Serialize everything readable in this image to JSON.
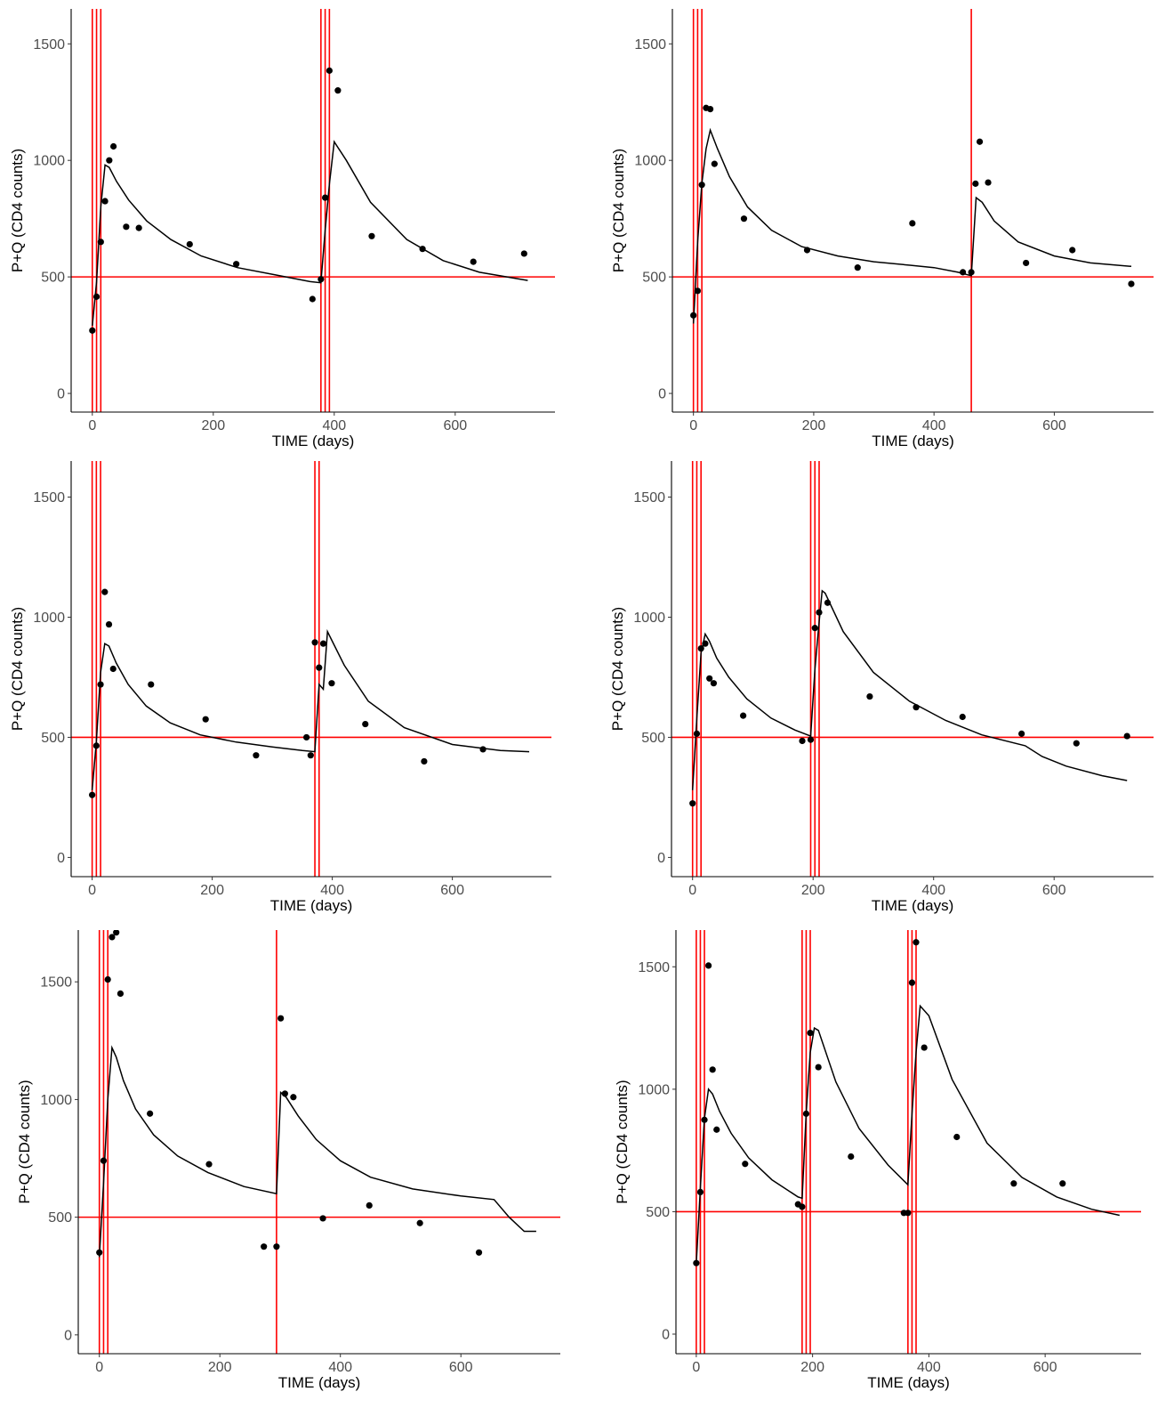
{
  "figure": {
    "colors": {
      "threshold": "#ff0000",
      "dose": "#ff0000",
      "fit": "#000000",
      "observed": "#000000"
    }
  },
  "chart_data": [
    {
      "type": "scatter",
      "panel": "top-left",
      "xlabel": "TIME (days)",
      "ylabel": "P+Q (CD4 counts)",
      "xlim": [
        -35,
        765
      ],
      "ylim": [
        -80,
        1650
      ],
      "xticks": [
        0,
        200,
        400,
        600
      ],
      "yticks": [
        0,
        500,
        1000,
        1500
      ],
      "grid": false,
      "threshold": 500,
      "dose_times": [
        0,
        7,
        14,
        378,
        385,
        392
      ],
      "observed": {
        "x": [
          0,
          7,
          14,
          21,
          28,
          35,
          56,
          77,
          161,
          238,
          364,
          378,
          385,
          392,
          406,
          462,
          546,
          630,
          714
        ],
        "y": [
          270,
          415,
          650,
          825,
          1000,
          1060,
          715,
          710,
          640,
          555,
          405,
          490,
          840,
          1385,
          1300,
          675,
          620,
          565,
          600
        ]
      },
      "fit": {
        "x": [
          0,
          7,
          14,
          21,
          28,
          40,
          60,
          90,
          130,
          180,
          240,
          300,
          360,
          378,
          385,
          392,
          400,
          420,
          460,
          520,
          580,
          640,
          720
        ],
        "y": [
          290,
          480,
          800,
          980,
          970,
          910,
          830,
          740,
          660,
          590,
          540,
          510,
          480,
          475,
          700,
          900,
          1080,
          1000,
          820,
          660,
          570,
          520,
          485
        ]
      }
    },
    {
      "type": "scatter",
      "panel": "top-right",
      "xlabel": "TIME (days)",
      "ylabel": "P+Q (CD4 counts)",
      "xlim": [
        -35,
        765
      ],
      "ylim": [
        -80,
        1650
      ],
      "xticks": [
        0,
        200,
        400,
        600
      ],
      "yticks": [
        0,
        500,
        1000,
        1500
      ],
      "grid": false,
      "threshold": 500,
      "dose_times": [
        0,
        7,
        14,
        462
      ],
      "observed": {
        "x": [
          0,
          7,
          14,
          21,
          28,
          35,
          84,
          189,
          273,
          364,
          448,
          462,
          469,
          476,
          490,
          553,
          630,
          728
        ],
        "y": [
          335,
          440,
          895,
          1225,
          1220,
          985,
          750,
          615,
          540,
          730,
          520,
          520,
          900,
          1080,
          905,
          560,
          615,
          470
        ]
      },
      "fit": {
        "x": [
          0,
          7,
          14,
          21,
          28,
          40,
          60,
          90,
          130,
          180,
          240,
          300,
          360,
          400,
          440,
          462,
          470,
          480,
          500,
          540,
          600,
          660,
          728
        ],
        "y": [
          300,
          650,
          900,
          1050,
          1130,
          1050,
          930,
          800,
          700,
          630,
          590,
          565,
          550,
          540,
          520,
          505,
          840,
          820,
          740,
          650,
          590,
          560,
          545
        ]
      }
    },
    {
      "type": "scatter",
      "panel": "middle-left",
      "xlabel": "TIME (days)",
      "ylabel": "P+Q (CD4 counts)",
      "xlim": [
        -35,
        765
      ],
      "ylim": [
        -80,
        1650
      ],
      "xticks": [
        0,
        200,
        400,
        600
      ],
      "yticks": [
        0,
        500,
        1000,
        1500
      ],
      "grid": false,
      "threshold": 500,
      "dose_times": [
        0,
        7,
        14,
        371,
        378
      ],
      "observed": {
        "x": [
          0,
          7,
          14,
          21,
          28,
          35,
          98,
          189,
          273,
          357,
          364,
          371,
          378,
          385,
          399,
          455,
          553,
          651
        ],
        "y": [
          260,
          465,
          720,
          1105,
          970,
          785,
          720,
          575,
          425,
          500,
          425,
          895,
          790,
          890,
          725,
          555,
          400,
          450
        ]
      },
      "fit": {
        "x": [
          0,
          7,
          14,
          21,
          28,
          40,
          60,
          90,
          130,
          180,
          240,
          300,
          350,
          371,
          378,
          385,
          392,
          400,
          420,
          460,
          520,
          600,
          680,
          728
        ],
        "y": [
          280,
          480,
          770,
          890,
          880,
          810,
          720,
          630,
          560,
          510,
          480,
          460,
          445,
          440,
          720,
          700,
          940,
          900,
          800,
          650,
          540,
          470,
          445,
          440
        ]
      }
    },
    {
      "type": "scatter",
      "panel": "middle-right",
      "xlabel": "TIME (days)",
      "ylabel": "P+Q (CD4 counts)",
      "xlim": [
        -35,
        765
      ],
      "ylim": [
        -80,
        1650
      ],
      "xticks": [
        0,
        200,
        400,
        600
      ],
      "yticks": [
        0,
        500,
        1000,
        1500
      ],
      "grid": false,
      "threshold": 500,
      "dose_times": [
        0,
        7,
        14,
        196,
        203,
        210
      ],
      "observed": {
        "x": [
          0,
          7,
          14,
          21,
          28,
          35,
          84,
          182,
          196,
          203,
          210,
          224,
          294,
          371,
          448,
          546,
          637,
          721
        ],
        "y": [
          225,
          515,
          870,
          890,
          745,
          725,
          590,
          485,
          490,
          955,
          1020,
          1060,
          670,
          625,
          585,
          515,
          475,
          505
        ]
      },
      "fit": {
        "x": [
          0,
          7,
          14,
          21,
          28,
          40,
          60,
          90,
          130,
          170,
          196,
          203,
          210,
          215,
          220,
          250,
          300,
          360,
          420,
          480,
          552,
          580,
          620,
          680,
          721
        ],
        "y": [
          280,
          580,
          850,
          930,
          900,
          830,
          750,
          660,
          580,
          530,
          505,
          780,
          980,
          1110,
          1100,
          940,
          770,
          650,
          570,
          510,
          465,
          420,
          380,
          340,
          320
        ]
      }
    },
    {
      "type": "scatter",
      "panel": "bottom-left",
      "xlabel": "TIME (days)",
      "ylabel": "P+Q (CD4 counts)",
      "xlim": [
        -35,
        765
      ],
      "ylim": [
        -80,
        1720
      ],
      "xticks": [
        0,
        200,
        400,
        600
      ],
      "yticks": [
        0,
        500,
        1000,
        1500
      ],
      "grid": false,
      "threshold": 500,
      "dose_times": [
        0,
        7,
        14,
        294
      ],
      "observed": {
        "x": [
          0,
          7,
          14,
          21,
          28,
          35,
          84,
          182,
          273,
          294,
          301,
          308,
          322,
          371,
          448,
          532,
          630
        ],
        "y": [
          350,
          740,
          1510,
          1690,
          1710,
          1450,
          940,
          725,
          375,
          375,
          1345,
          1025,
          1010,
          495,
          550,
          475,
          350
        ]
      },
      "fit": {
        "x": [
          0,
          7,
          14,
          21,
          28,
          40,
          60,
          90,
          130,
          180,
          240,
          294,
          301,
          310,
          330,
          360,
          400,
          450,
          520,
          600,
          655,
          680,
          705,
          725
        ],
        "y": [
          330,
          650,
          1000,
          1220,
          1180,
          1080,
          960,
          850,
          760,
          690,
          630,
          600,
          1030,
          1010,
          930,
          830,
          740,
          670,
          620,
          590,
          575,
          500,
          440,
          440
        ]
      }
    },
    {
      "type": "scatter",
      "panel": "bottom-right",
      "xlabel": "TIME (days)",
      "ylabel": "P+Q (CD4 counts)",
      "xlim": [
        -35,
        765
      ],
      "ylim": [
        -80,
        1650
      ],
      "xticks": [
        0,
        200,
        400,
        600
      ],
      "yticks": [
        0,
        500,
        1000,
        1500
      ],
      "grid": false,
      "threshold": 500,
      "dose_times": [
        0,
        7,
        14,
        182,
        189,
        196,
        364,
        371,
        378
      ],
      "observed": {
        "x": [
          0,
          7,
          14,
          21,
          28,
          35,
          84,
          175,
          182,
          189,
          196,
          210,
          266,
          357,
          364,
          371,
          378,
          392,
          448,
          546,
          630
        ],
        "y": [
          290,
          580,
          875,
          1505,
          1080,
          835,
          695,
          530,
          520,
          900,
          1230,
          1090,
          725,
          495,
          495,
          1435,
          1600,
          1170,
          805,
          615,
          615
        ]
      },
      "fit": {
        "x": [
          0,
          7,
          14,
          21,
          28,
          40,
          60,
          90,
          130,
          175,
          182,
          189,
          196,
          203,
          210,
          240,
          280,
          330,
          364,
          371,
          378,
          385,
          400,
          440,
          500,
          560,
          620,
          680,
          728
        ],
        "y": [
          290,
          600,
          880,
          1000,
          980,
          910,
          820,
          720,
          630,
          560,
          555,
          900,
          1150,
          1250,
          1240,
          1030,
          840,
          690,
          610,
          900,
          1150,
          1340,
          1300,
          1040,
          780,
          640,
          560,
          510,
          485
        ]
      }
    }
  ]
}
